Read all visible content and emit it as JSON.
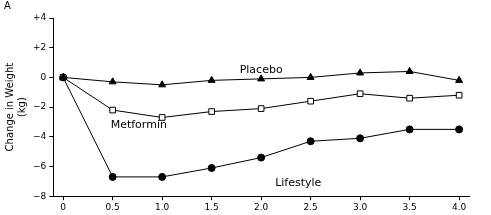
{
  "chart_data": {
    "type": "line",
    "title": "A",
    "y_label": "Change in Weight (kg)",
    "x": [
      0,
      0.5,
      1.0,
      1.5,
      2.0,
      2.5,
      3.0,
      3.5,
      4.0
    ],
    "series": [
      {
        "name": "Placebo",
        "color": "#000000",
        "marker": "triangle",
        "line_style": "solid",
        "values": [
          0,
          -0.3,
          -0.5,
          -0.2,
          -0.1,
          0,
          0.3,
          0.4,
          -0.2
        ]
      },
      {
        "name": "Metformin",
        "color": "#000000",
        "marker": "open-square",
        "line_style": "solid",
        "values": [
          0,
          -2.2,
          -2.7,
          -2.3,
          -2.1,
          -1.6,
          -1.1,
          -1.4,
          -1.2
        ]
      },
      {
        "name": "Lifestyle",
        "color": "#000000",
        "marker": "circle",
        "line_style": "solid",
        "values": [
          0,
          -6.7,
          -6.7,
          -6.1,
          -5.4,
          -4.3,
          -4.1,
          -3.5,
          -3.5
        ]
      }
    ],
    "xlim": [
      -0.1,
      4.1
    ],
    "xticks": [
      0,
      0.5,
      {
        "value": 1,
        "label": "1.0"
      },
      1.5,
      {
        "value": 2,
        "label": "2.0"
      },
      2.5,
      {
        "value": 3,
        "label": "3.0"
      },
      3.5,
      {
        "value": 4,
        "label": "4.0"
      }
    ],
    "ylim": [
      -8,
      4
    ],
    "yticks": [
      {
        "value": -8,
        "label": "−8"
      },
      {
        "value": -6,
        "label": "−6"
      },
      {
        "value": -4,
        "label": "−4"
      },
      {
        "value": -2,
        "label": "−2"
      },
      0,
      {
        "value": 2,
        "label": "+2"
      },
      {
        "value": 4,
        "label": "+4"
      }
    ],
    "grid": false
  }
}
